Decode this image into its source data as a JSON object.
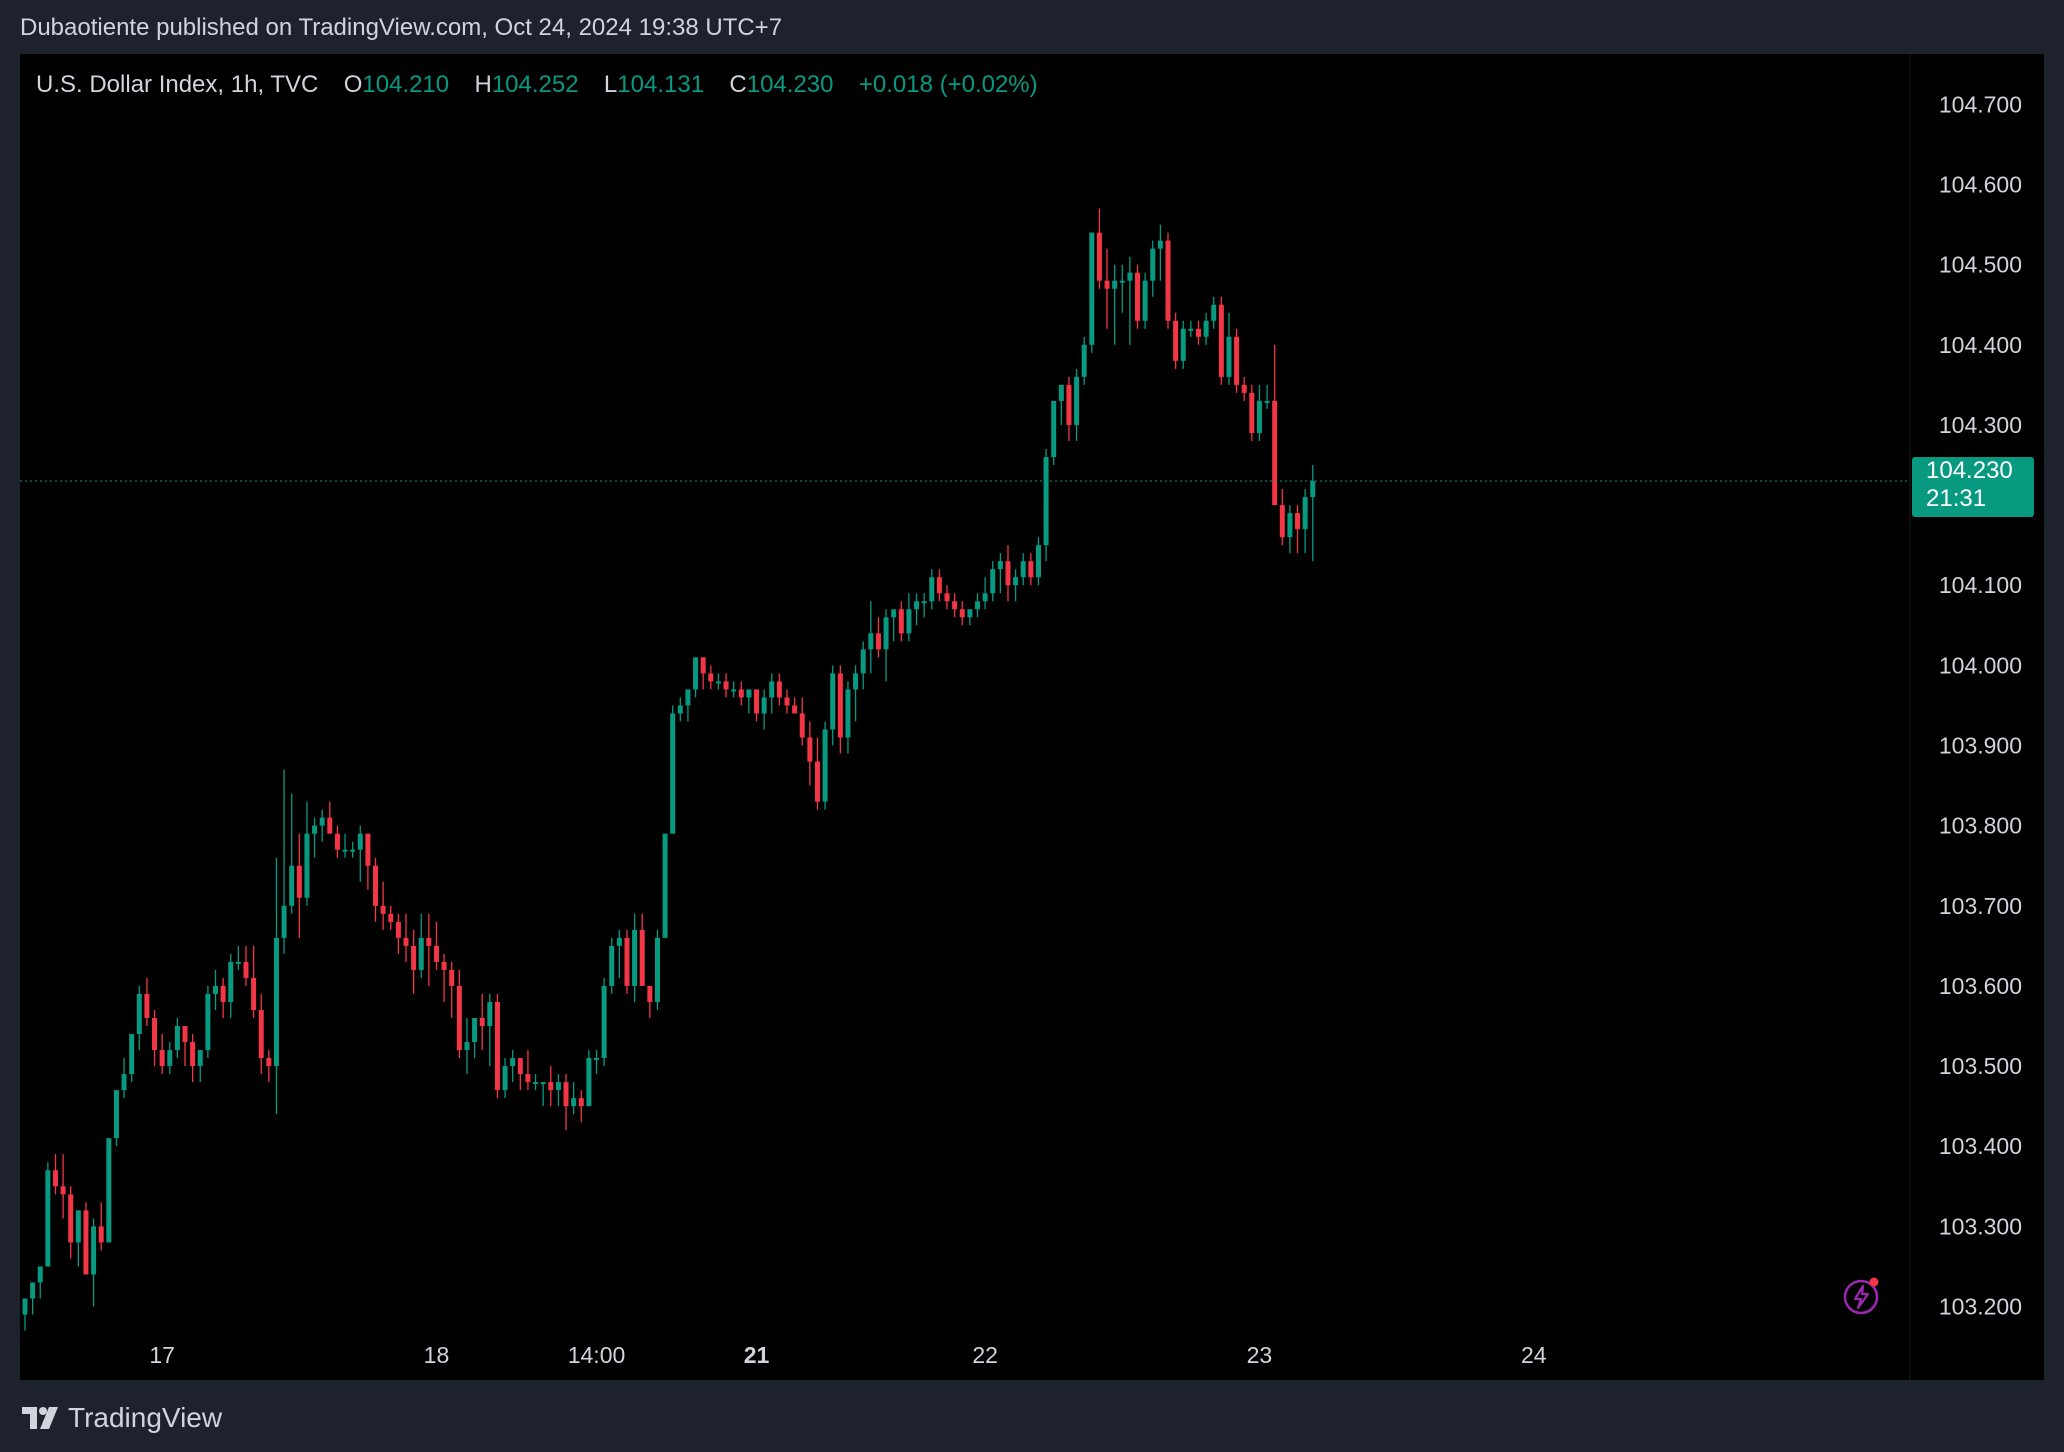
{
  "header": {
    "published_text": "Dubaotiente published on TradingView.com, Oct 24, 2024 19:38 UTC+7"
  },
  "legend": {
    "symbol": "U.S. Dollar Index, 1h, TVC",
    "open_label": "O",
    "open": "104.210",
    "high_label": "H",
    "high": "104.252",
    "low_label": "L",
    "low": "104.131",
    "close_label": "C",
    "close": "104.230",
    "change": "+0.018 (+0.02%)"
  },
  "price_tag": {
    "price": "104.230",
    "countdown": "21:31"
  },
  "footer": {
    "brand": "TradingView"
  },
  "icons": {
    "logo": "tradingview-logo-icon",
    "bolt": "lightning-bolt-icon"
  },
  "colors": {
    "up": "#089981",
    "down": "#f23645",
    "background": "#000000",
    "frame": "#1e222d",
    "text": "#d1d4dc",
    "accent": "#9c27b0"
  },
  "chart_data": {
    "type": "candlestick",
    "symbol": "U.S. Dollar Index",
    "interval": "1h",
    "ylim": [
      103.17,
      104.74
    ],
    "y_ticks": [
      "104.700",
      "104.600",
      "104.500",
      "104.400",
      "104.300",
      "104.100",
      "104.000",
      "103.900",
      "103.800",
      "103.700",
      "103.600",
      "103.500",
      "103.400",
      "103.300",
      "103.200"
    ],
    "x_ticks": [
      {
        "label": "17",
        "index": 18,
        "bold": false
      },
      {
        "label": "18",
        "index": 54,
        "bold": false
      },
      {
        "label": "14:00",
        "index": 75,
        "bold": false
      },
      {
        "label": "21",
        "index": 96,
        "bold": true
      },
      {
        "label": "22",
        "index": 126,
        "bold": false
      },
      {
        "label": "23",
        "index": 162,
        "bold": false
      },
      {
        "label": "24",
        "index": 198,
        "bold": false
      }
    ],
    "last_price": 104.23,
    "candles": [
      [
        103.19,
        103.21,
        103.17,
        103.21
      ],
      [
        103.21,
        103.23,
        103.19,
        103.23
      ],
      [
        103.23,
        103.25,
        103.21,
        103.25
      ],
      [
        103.25,
        103.38,
        103.25,
        103.37
      ],
      [
        103.37,
        103.39,
        103.34,
        103.35
      ],
      [
        103.35,
        103.39,
        103.31,
        103.34
      ],
      [
        103.34,
        103.35,
        103.26,
        103.28
      ],
      [
        103.28,
        103.32,
        103.25,
        103.32
      ],
      [
        103.32,
        103.33,
        103.24,
        103.24
      ],
      [
        103.24,
        103.31,
        103.2,
        103.3
      ],
      [
        103.3,
        103.33,
        103.27,
        103.28
      ],
      [
        103.28,
        103.41,
        103.28,
        103.41
      ],
      [
        103.41,
        103.47,
        103.4,
        103.47
      ],
      [
        103.47,
        103.51,
        103.46,
        103.49
      ],
      [
        103.49,
        103.54,
        103.48,
        103.54
      ],
      [
        103.54,
        103.6,
        103.52,
        103.59
      ],
      [
        103.59,
        103.61,
        103.55,
        103.56
      ],
      [
        103.56,
        103.57,
        103.5,
        103.52
      ],
      [
        103.52,
        103.54,
        103.49,
        103.5
      ],
      [
        103.5,
        103.53,
        103.49,
        103.52
      ],
      [
        103.52,
        103.56,
        103.51,
        103.55
      ],
      [
        103.55,
        103.54,
        103.5,
        103.53
      ],
      [
        103.53,
        103.54,
        103.48,
        103.5
      ],
      [
        103.5,
        103.52,
        103.48,
        103.52
      ],
      [
        103.52,
        103.6,
        103.51,
        103.59
      ],
      [
        103.59,
        103.62,
        103.57,
        103.6
      ],
      [
        103.6,
        103.61,
        103.56,
        103.58
      ],
      [
        103.58,
        103.64,
        103.56,
        103.63
      ],
      [
        103.63,
        103.65,
        103.62,
        103.63
      ],
      [
        103.63,
        103.65,
        103.6,
        103.61
      ],
      [
        103.61,
        103.65,
        103.56,
        103.57
      ],
      [
        103.57,
        103.59,
        103.49,
        103.51
      ],
      [
        103.51,
        103.52,
        103.48,
        103.5
      ],
      [
        103.5,
        103.76,
        103.44,
        103.66
      ],
      [
        103.66,
        103.87,
        103.64,
        103.7
      ],
      [
        103.7,
        103.84,
        103.69,
        103.75
      ],
      [
        103.75,
        103.79,
        103.66,
        103.71
      ],
      [
        103.71,
        103.83,
        103.7,
        103.79
      ],
      [
        103.79,
        103.81,
        103.76,
        103.8
      ],
      [
        103.8,
        103.82,
        103.78,
        103.81
      ],
      [
        103.81,
        103.83,
        103.79,
        103.79
      ],
      [
        103.79,
        103.8,
        103.76,
        103.77
      ],
      [
        103.77,
        103.79,
        103.76,
        103.77
      ],
      [
        103.77,
        103.78,
        103.76,
        103.77
      ],
      [
        103.77,
        103.8,
        103.73,
        103.79
      ],
      [
        103.79,
        103.79,
        103.72,
        103.75
      ],
      [
        103.75,
        103.76,
        103.68,
        103.7
      ],
      [
        103.7,
        103.73,
        103.67,
        103.69
      ],
      [
        103.69,
        103.7,
        103.67,
        103.68
      ],
      [
        103.68,
        103.69,
        103.64,
        103.66
      ],
      [
        103.66,
        103.69,
        103.63,
        103.65
      ],
      [
        103.65,
        103.67,
        103.59,
        103.62
      ],
      [
        103.62,
        103.69,
        103.61,
        103.66
      ],
      [
        103.66,
        103.69,
        103.6,
        103.65
      ],
      [
        103.65,
        103.68,
        103.62,
        103.63
      ],
      [
        103.63,
        103.64,
        103.58,
        103.62
      ],
      [
        103.62,
        103.63,
        103.56,
        103.6
      ],
      [
        103.6,
        103.62,
        103.51,
        103.52
      ],
      [
        103.52,
        103.56,
        103.49,
        103.53
      ],
      [
        103.53,
        103.56,
        103.51,
        103.56
      ],
      [
        103.56,
        103.59,
        103.52,
        103.55
      ],
      [
        103.55,
        103.59,
        103.5,
        103.58
      ],
      [
        103.58,
        103.59,
        103.46,
        103.47
      ],
      [
        103.47,
        103.51,
        103.46,
        103.5
      ],
      [
        103.5,
        103.52,
        103.48,
        103.51
      ],
      [
        103.51,
        103.51,
        103.47,
        103.49
      ],
      [
        103.49,
        103.52,
        103.47,
        103.48
      ],
      [
        103.48,
        103.49,
        103.47,
        103.48
      ],
      [
        103.48,
        103.48,
        103.45,
        103.48
      ],
      [
        103.48,
        103.5,
        103.45,
        103.47
      ],
      [
        103.47,
        103.49,
        103.45,
        103.48
      ],
      [
        103.48,
        103.49,
        103.42,
        103.45
      ],
      [
        103.45,
        103.48,
        103.44,
        103.46
      ],
      [
        103.46,
        103.47,
        103.43,
        103.45
      ],
      [
        103.45,
        103.52,
        103.45,
        103.51
      ],
      [
        103.51,
        103.52,
        103.49,
        103.51
      ],
      [
        103.51,
        103.61,
        103.5,
        103.6
      ],
      [
        103.6,
        103.66,
        103.59,
        103.65
      ],
      [
        103.65,
        103.67,
        103.61,
        103.66
      ],
      [
        103.66,
        103.67,
        103.59,
        103.6
      ],
      [
        103.6,
        103.69,
        103.58,
        103.67
      ],
      [
        103.67,
        103.69,
        103.61,
        103.6
      ],
      [
        103.6,
        103.6,
        103.56,
        103.58
      ],
      [
        103.58,
        103.67,
        103.57,
        103.66
      ],
      [
        103.66,
        103.79,
        103.66,
        103.79
      ],
      [
        103.79,
        103.95,
        103.79,
        103.94
      ],
      [
        103.94,
        103.96,
        103.93,
        103.95
      ],
      [
        103.95,
        103.97,
        103.93,
        103.97
      ],
      [
        103.97,
        104.01,
        103.96,
        104.01
      ],
      [
        104.01,
        104.01,
        103.97,
        103.99
      ],
      [
        103.99,
        104.0,
        103.97,
        103.98
      ],
      [
        103.98,
        103.99,
        103.97,
        103.98
      ],
      [
        103.98,
        103.99,
        103.96,
        103.97
      ],
      [
        103.97,
        103.98,
        103.96,
        103.97
      ],
      [
        103.97,
        103.98,
        103.95,
        103.96
      ],
      [
        103.96,
        103.97,
        103.94,
        103.97
      ],
      [
        103.97,
        103.97,
        103.93,
        103.94
      ],
      [
        103.94,
        103.97,
        103.92,
        103.96
      ],
      [
        103.96,
        103.99,
        103.94,
        103.98
      ],
      [
        103.98,
        103.99,
        103.95,
        103.96
      ],
      [
        103.96,
        103.97,
        103.94,
        103.95
      ],
      [
        103.95,
        103.96,
        103.94,
        103.94
      ],
      [
        103.94,
        103.96,
        103.9,
        103.91
      ],
      [
        103.91,
        103.93,
        103.85,
        103.88
      ],
      [
        103.88,
        103.91,
        103.82,
        103.83
      ],
      [
        103.83,
        103.93,
        103.82,
        103.92
      ],
      [
        103.92,
        104.0,
        103.9,
        103.99
      ],
      [
        103.99,
        104.0,
        103.89,
        103.91
      ],
      [
        103.91,
        103.98,
        103.89,
        103.97
      ],
      [
        103.97,
        104.0,
        103.93,
        103.99
      ],
      [
        103.99,
        104.03,
        103.97,
        104.02
      ],
      [
        104.02,
        104.08,
        103.99,
        104.04
      ],
      [
        104.04,
        104.06,
        104.01,
        104.02
      ],
      [
        104.02,
        104.07,
        103.98,
        104.06
      ],
      [
        104.06,
        104.07,
        104.03,
        104.07
      ],
      [
        104.07,
        104.08,
        104.03,
        104.04
      ],
      [
        104.04,
        104.09,
        104.03,
        104.07
      ],
      [
        104.07,
        104.09,
        104.05,
        104.08
      ],
      [
        104.08,
        104.09,
        104.06,
        104.08
      ],
      [
        104.08,
        104.12,
        104.07,
        104.11
      ],
      [
        104.11,
        104.12,
        104.08,
        104.09
      ],
      [
        104.09,
        104.1,
        104.07,
        104.08
      ],
      [
        104.08,
        104.09,
        104.06,
        104.07
      ],
      [
        104.07,
        104.08,
        104.05,
        104.06
      ],
      [
        104.06,
        104.07,
        104.05,
        104.07
      ],
      [
        104.07,
        104.09,
        104.06,
        104.08
      ],
      [
        104.08,
        104.11,
        104.07,
        104.09
      ],
      [
        104.09,
        104.13,
        104.08,
        104.12
      ],
      [
        104.12,
        104.14,
        104.09,
        104.13
      ],
      [
        104.13,
        104.15,
        104.08,
        104.1
      ],
      [
        104.1,
        104.12,
        104.08,
        104.11
      ],
      [
        104.11,
        104.14,
        104.1,
        104.13
      ],
      [
        104.13,
        104.14,
        104.1,
        104.11
      ],
      [
        104.11,
        104.16,
        104.1,
        104.15
      ],
      [
        104.15,
        104.27,
        104.13,
        104.26
      ],
      [
        104.26,
        104.33,
        104.25,
        104.33
      ],
      [
        104.33,
        104.35,
        104.3,
        104.35
      ],
      [
        104.35,
        104.36,
        104.28,
        104.3
      ],
      [
        104.3,
        104.37,
        104.28,
        104.36
      ],
      [
        104.36,
        104.41,
        104.35,
        104.4
      ],
      [
        104.4,
        104.54,
        104.39,
        104.54
      ],
      [
        104.54,
        104.57,
        104.47,
        104.48
      ],
      [
        104.48,
        104.52,
        104.42,
        104.47
      ],
      [
        104.47,
        104.5,
        104.4,
        104.48
      ],
      [
        104.48,
        104.5,
        104.44,
        104.48
      ],
      [
        104.48,
        104.51,
        104.4,
        104.49
      ],
      [
        104.49,
        104.5,
        104.42,
        104.43
      ],
      [
        104.43,
        104.49,
        104.42,
        104.48
      ],
      [
        104.48,
        104.53,
        104.46,
        104.52
      ],
      [
        104.52,
        104.55,
        104.48,
        104.53
      ],
      [
        104.53,
        104.54,
        104.42,
        104.43
      ],
      [
        104.43,
        104.44,
        104.37,
        104.38
      ],
      [
        104.38,
        104.43,
        104.37,
        104.42
      ],
      [
        104.42,
        104.43,
        104.41,
        104.42
      ],
      [
        104.42,
        104.43,
        104.4,
        104.41
      ],
      [
        104.41,
        104.44,
        104.4,
        104.43
      ],
      [
        104.43,
        104.46,
        104.42,
        104.45
      ],
      [
        104.45,
        104.46,
        104.35,
        104.36
      ],
      [
        104.36,
        104.44,
        104.35,
        104.41
      ],
      [
        104.41,
        104.42,
        104.34,
        104.35
      ],
      [
        104.35,
        104.36,
        104.33,
        104.34
      ],
      [
        104.34,
        104.35,
        104.28,
        104.29
      ],
      [
        104.29,
        104.35,
        104.28,
        104.33
      ],
      [
        104.33,
        104.35,
        104.32,
        104.33
      ],
      [
        104.33,
        104.4,
        104.2,
        104.2
      ],
      [
        104.2,
        104.22,
        104.15,
        104.16
      ],
      [
        104.16,
        104.2,
        104.14,
        104.19
      ],
      [
        104.19,
        104.2,
        104.14,
        104.17
      ],
      [
        104.17,
        104.22,
        104.14,
        104.21
      ],
      [
        104.21,
        104.25,
        104.13,
        104.23
      ]
    ]
  }
}
